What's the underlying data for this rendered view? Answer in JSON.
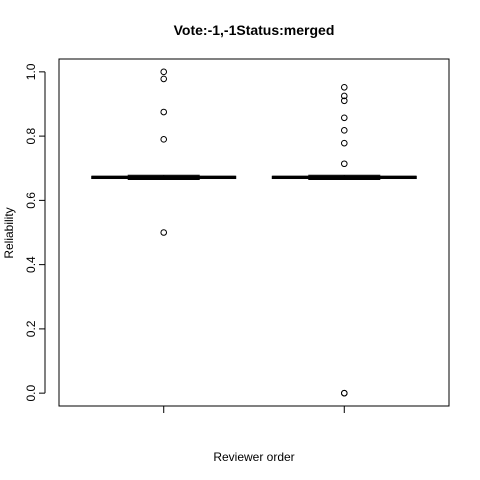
{
  "chart_data": {
    "type": "box",
    "title": "Vote:-1,-1Status:merged",
    "xlabel": "Reviewer order",
    "ylabel": "Reliability",
    "ylim": [
      -0.04,
      1.04
    ],
    "yticks": [
      0.0,
      0.2,
      0.4,
      0.6,
      0.8,
      1.0
    ],
    "ytick_labels": [
      "0.0",
      "0.2",
      "0.4",
      "0.6",
      "0.8",
      "1.0"
    ],
    "categories": [
      "",
      ""
    ],
    "series": [
      {
        "median": 0.672,
        "q1": 0.668,
        "q3": 0.675,
        "whisker_low": 0.665,
        "whisker_high": 0.678,
        "outliers": [
          1.0,
          0.978,
          0.875,
          0.79,
          0.5
        ]
      },
      {
        "median": 0.672,
        "q1": 0.668,
        "q3": 0.675,
        "whisker_low": 0.665,
        "whisker_high": 0.678,
        "outliers": [
          0.952,
          0.925,
          0.91,
          0.857,
          0.818,
          0.778,
          0.714,
          0.0,
          0.0
        ]
      }
    ],
    "grid": false,
    "legend": "none",
    "colors": {
      "box": "#000000",
      "outlier": "#000000",
      "background": "#ffffff"
    }
  }
}
